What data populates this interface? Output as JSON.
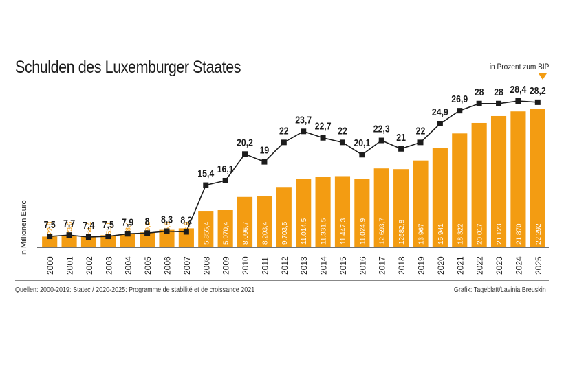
{
  "chart_data": {
    "type": "bar",
    "title": "Schulden des Luxemburger Staates",
    "ylabel": "in Millionen Euro",
    "y2label": "in Prozent zum BIP",
    "categories": [
      "2000",
      "2001",
      "2002",
      "2003",
      "2004",
      "2005",
      "2006",
      "2007",
      "2008",
      "2009",
      "2010",
      "2011",
      "2012",
      "2013",
      "2014",
      "2015",
      "2016",
      "2017",
      "2018",
      "2019",
      "2020",
      "2021",
      "2022",
      "2023",
      "2024",
      "2025"
    ],
    "series": [
      {
        "name": "in Millionen Euro",
        "type": "bar",
        "color": "#f39c12",
        "values": [
          1722.8,
          1823.6,
          1864.4,
          1951.1,
          2208.4,
          2409.2,
          2805.8,
          3048.9,
          5855.4,
          5970.4,
          8096.7,
          8203.4,
          9703.5,
          11014.5,
          11331.5,
          11447.3,
          11024.9,
          12693.7,
          12582.8,
          13967,
          15941,
          18322,
          20017,
          21123,
          21870,
          22292
        ],
        "labels": [
          "1.722,8",
          "1.823,6",
          "1.864,4",
          "1.951,1",
          "2.208,4",
          "2.409,2",
          "2.805,8",
          "3.048,9",
          "5.855,4",
          "5.970,4",
          "8.096,7",
          "8.203,4",
          "9.703,5",
          "11.014,5",
          "11.331,5",
          "11.447,3",
          "11.024,9",
          "12.693,7",
          "12582,8",
          "13.967",
          "15.941",
          "18.322",
          "20.017",
          "21.123",
          "21.870",
          "22.292"
        ]
      },
      {
        "name": "in Prozent zum BIP",
        "type": "line",
        "color": "#1c1c1c",
        "values": [
          7.5,
          7.7,
          7.4,
          7.5,
          7.9,
          8,
          8.3,
          8.2,
          15.4,
          16.1,
          20.2,
          19,
          22,
          23.7,
          22.7,
          22,
          20.1,
          22.3,
          21,
          22,
          24.9,
          26.9,
          28,
          28,
          28.4,
          28.2
        ],
        "labels": [
          "7,5",
          "7,7",
          "7,4",
          "7,5",
          "7,9",
          "8",
          "8,3",
          "8,2",
          "15,4",
          "16,1",
          "20,2",
          "19",
          "22",
          "23,7",
          "22,7",
          "22",
          "20,1",
          "22,3",
          "21",
          "22",
          "24,9",
          "26,9",
          "28",
          "28",
          "28,4",
          "28,2"
        ]
      }
    ],
    "ylim": [
      0,
      23000
    ],
    "y2lim": [
      0,
      29.5
    ],
    "grid": false,
    "colors": {
      "bar": "#f39c12",
      "line": "#1c1c1c",
      "bar_label_dark": "#ffffff",
      "bar_label_light": "#f39c12"
    }
  },
  "footer": {
    "source": "Quellen: 2000-2019: Statec / 2020-2025: Programme de stabilité et de croissance 2021",
    "credit": "Grafik: Tageblatt/Lavinia Breuskin"
  }
}
